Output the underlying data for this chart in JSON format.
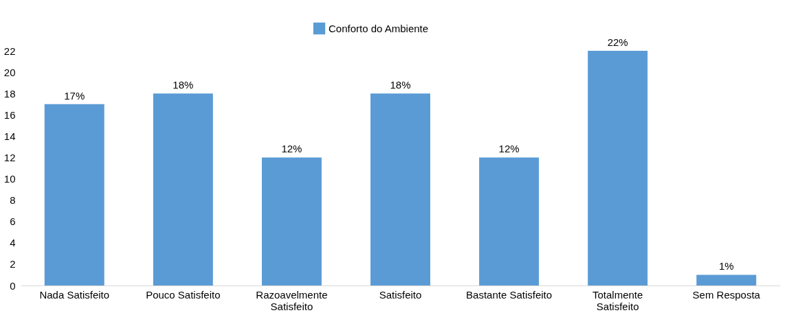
{
  "chart_data": {
    "type": "bar",
    "categories": [
      "Nada Satisfeito",
      "Pouco Satisfeito",
      "Razoavelmente Satisfeito",
      "Satisfeito",
      "Bastante Satisfeito",
      "Totalmente Satisfeito",
      "Sem Resposta"
    ],
    "series": [
      {
        "name": "Conforto do Ambiente",
        "color": "#5b9bd5",
        "values": [
          17,
          18,
          12,
          18,
          12,
          22,
          1
        ],
        "value_labels": [
          "17%",
          "18%",
          "12%",
          "18%",
          "12%",
          "22%",
          "1%"
        ]
      }
    ],
    "ylim": [
      0,
      22
    ],
    "yticks": [
      0,
      2,
      4,
      6,
      8,
      10,
      12,
      14,
      16,
      18,
      20,
      22
    ],
    "grid": false,
    "legend": "top"
  }
}
